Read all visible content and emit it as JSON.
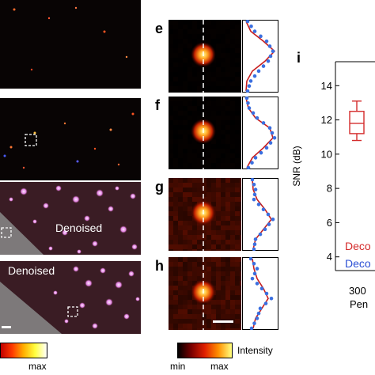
{
  "colors": {
    "accent_red": "#d42b2b",
    "accent_blue": "#2b4fd4",
    "profile_fit": "#c81e1e",
    "profile_points": "#3a6fe0"
  },
  "left_panels": [
    {
      "overlay_label": ""
    },
    {
      "overlay_label": ""
    },
    {
      "overlay_label": "Denoised"
    },
    {
      "overlay_label": "Denoised"
    }
  ],
  "left_colorbar": {
    "max_label": "max"
  },
  "zoom_panels": [
    {
      "letter": "e"
    },
    {
      "letter": "f"
    },
    {
      "letter": "g"
    },
    {
      "letter": "h"
    }
  ],
  "intensity_colorbar": {
    "title": "Intensity",
    "min_label": "min",
    "max_label": "max"
  },
  "snr_panel": {
    "letter": "i",
    "ylabel": "SNR (dB)",
    "legend": [
      {
        "text": "Deco",
        "color": "#d42b2b"
      },
      {
        "text": "Deco",
        "color": "#2b4fd4"
      }
    ],
    "x_tick": "300",
    "x_label_partial": "Pen"
  },
  "chart_data": {
    "type": "box",
    "title": "",
    "xlabel": "",
    "ylabel": "SNR (dB)",
    "ylim": [
      3.2,
      15.4
    ],
    "y_ticks": [
      4,
      6,
      8,
      10,
      12,
      14
    ],
    "categories": [
      "300"
    ],
    "series": [
      {
        "color": "#d42b2b",
        "min": 10.8,
        "q1": 11.2,
        "median": 11.8,
        "q3": 12.5,
        "max": 13.1
      }
    ]
  }
}
